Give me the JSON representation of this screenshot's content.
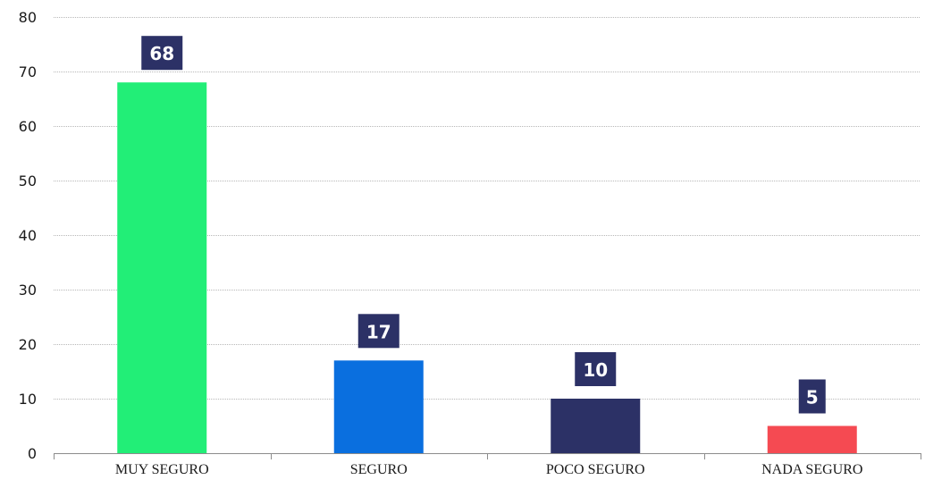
{
  "chart_data": {
    "type": "bar",
    "categories": [
      "MUY SEGURO",
      "SEGURO",
      "POCO SEGURO",
      "NADA SEGURO"
    ],
    "values": [
      68,
      17,
      10,
      5
    ],
    "data_labels": [
      "68",
      "17",
      "10",
      "5"
    ],
    "bar_colors": [
      "#22ee77",
      "#0a6fdf",
      "#2c3166",
      "#f54a52"
    ],
    "label_box_color": "#2c3166",
    "title": "",
    "xlabel": "",
    "ylabel": "",
    "ylim": [
      0,
      80
    ],
    "yticks": [
      0,
      10,
      20,
      30,
      40,
      50,
      60,
      70,
      80
    ],
    "grid": true,
    "legend": false
  }
}
